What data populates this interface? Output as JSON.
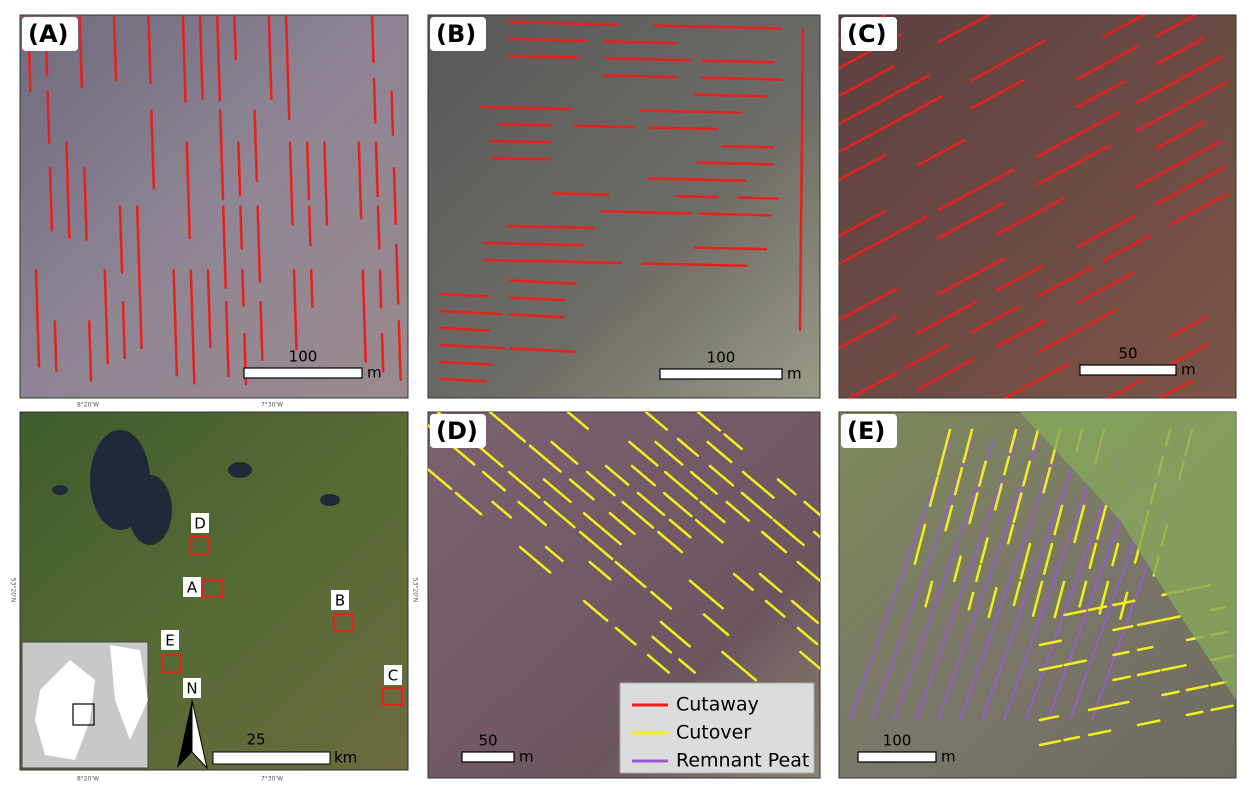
{
  "panels": [
    {
      "label": "(A)",
      "scale": {
        "value": 100,
        "unit": "m"
      }
    },
    {
      "label": "(B)",
      "scale": {
        "value": 100,
        "unit": "m"
      }
    },
    {
      "label": "(C)",
      "scale": {
        "value": 50,
        "unit": "m"
      }
    },
    {
      "label": "(D)",
      "scale": {
        "value": 50,
        "unit": "m"
      }
    },
    {
      "label": "(E)",
      "scale": {
        "value": 100,
        "unit": "m"
      }
    }
  ],
  "map": {
    "sites": [
      "D",
      "A",
      "B",
      "E",
      "C"
    ],
    "north": "N",
    "scale": {
      "value": 25,
      "unit": "km"
    },
    "graticule": {
      "top": [
        "8°20'W",
        "7°30'W"
      ],
      "bottom": [
        "8°20'W",
        "7°30'W"
      ],
      "left": "53°20'N",
      "right": "53°20'N"
    }
  },
  "legend": [
    {
      "name": "Cutaway",
      "color": "#e8201c"
    },
    {
      "name": "Cutover",
      "color": "#f2ef1a"
    },
    {
      "name": "Remnant Peat",
      "color": "#9b59d6"
    }
  ]
}
